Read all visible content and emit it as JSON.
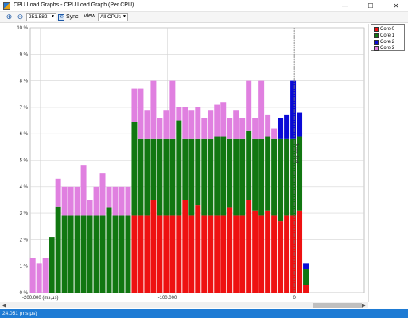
{
  "window": {
    "title": "CPU Load Graphs - CPU Load Graph (Per CPU)",
    "minimize_glyph": "—",
    "maximize_glyph": "☐",
    "close_glyph": "✕"
  },
  "toolbar": {
    "zoom_in_icon": "zoom-in-icon",
    "zoom_out_icon": "zoom-out-icon",
    "zoom_value": "251.582",
    "sync_label": "Sync",
    "view_label": "View",
    "cpu_select_value": "All CPUs"
  },
  "status_bar": {
    "text": "24.051 (ms,μs)"
  },
  "colors": {
    "core0": "#ee1111",
    "core1": "#117711",
    "core2": "#0a0ad6",
    "core3": "#e080e0",
    "status_bar": "#1e7bd4"
  },
  "chart_data": {
    "type": "bar",
    "stacked": true,
    "title": "",
    "xlabel": "",
    "ylabel": "",
    "ylim": [
      0,
      10
    ],
    "yticks": [
      "0 %",
      "1 %",
      "2 %",
      "3 %",
      "4 %",
      "5 %",
      "6 %",
      "7 %",
      "8 %",
      "9 %",
      "10 %"
    ],
    "xticks": [
      {
        "value": -200000,
        "label": "-200.000 (ms,μs)"
      },
      {
        "value": -100000,
        "label": "-100.000"
      },
      {
        "value": 0,
        "label": "0"
      }
    ],
    "xlim": [
      -208000,
      55000
    ],
    "grid": true,
    "legend_position": "right",
    "annotation": {
      "x": 0,
      "label": "Trace End"
    },
    "series_names": [
      "Core 0",
      "Core 1",
      "Core 2",
      "Core 3"
    ],
    "bins": [
      {
        "x": -206000,
        "core0": 0,
        "core1": 0,
        "core2": 0,
        "core3": 1.3
      },
      {
        "x": -201000,
        "core0": 0,
        "core1": 0,
        "core2": 0,
        "core3": 1.1
      },
      {
        "x": -196000,
        "core0": 0,
        "core1": 0,
        "core2": 0,
        "core3": 1.3
      },
      {
        "x": -191000,
        "core0": 0,
        "core1": 2.1,
        "core2": 0,
        "core3": 0
      },
      {
        "x": -186000,
        "core0": 0,
        "core1": 3.25,
        "core2": 0,
        "core3": 1.05
      },
      {
        "x": -181000,
        "core0": 0,
        "core1": 2.9,
        "core2": 0,
        "core3": 1.1
      },
      {
        "x": -176000,
        "core0": 0,
        "core1": 2.9,
        "core2": 0,
        "core3": 1.1
      },
      {
        "x": -171000,
        "core0": 0,
        "core1": 2.9,
        "core2": 0,
        "core3": 1.1
      },
      {
        "x": -166000,
        "core0": 0,
        "core1": 2.9,
        "core2": 0,
        "core3": 1.9
      },
      {
        "x": -161000,
        "core0": 0,
        "core1": 2.9,
        "core2": 0,
        "core3": 0.6
      },
      {
        "x": -156000,
        "core0": 0,
        "core1": 2.9,
        "core2": 0,
        "core3": 1.1
      },
      {
        "x": -151000,
        "core0": 0,
        "core1": 2.9,
        "core2": 0,
        "core3": 1.6
      },
      {
        "x": -146000,
        "core0": 0,
        "core1": 3.2,
        "core2": 0,
        "core3": 0.8
      },
      {
        "x": -141000,
        "core0": 0,
        "core1": 2.9,
        "core2": 0,
        "core3": 1.1
      },
      {
        "x": -136000,
        "core0": 0,
        "core1": 2.9,
        "core2": 0,
        "core3": 1.1
      },
      {
        "x": -131000,
        "core0": 0,
        "core1": 2.9,
        "core2": 0,
        "core3": 1.1
      },
      {
        "x": -126000,
        "core0": 2.9,
        "core1": 3.55,
        "core2": 0,
        "core3": 1.25
      },
      {
        "x": -121000,
        "core0": 2.9,
        "core1": 2.9,
        "core2": 0,
        "core3": 1.9
      },
      {
        "x": -116000,
        "core0": 2.9,
        "core1": 2.9,
        "core2": 0,
        "core3": 1.1
      },
      {
        "x": -111000,
        "core0": 3.5,
        "core1": 2.3,
        "core2": 0,
        "core3": 2.2
      },
      {
        "x": -106000,
        "core0": 2.9,
        "core1": 2.9,
        "core2": 0,
        "core3": 0.8
      },
      {
        "x": -101000,
        "core0": 2.9,
        "core1": 2.9,
        "core2": 0,
        "core3": 1.1
      },
      {
        "x": -96000,
        "core0": 2.9,
        "core1": 2.9,
        "core2": 0,
        "core3": 2.2
      },
      {
        "x": -91000,
        "core0": 2.9,
        "core1": 3.6,
        "core2": 0,
        "core3": 0.5
      },
      {
        "x": -86000,
        "core0": 3.5,
        "core1": 2.3,
        "core2": 0,
        "core3": 1.2
      },
      {
        "x": -81000,
        "core0": 2.9,
        "core1": 2.9,
        "core2": 0,
        "core3": 1.1
      },
      {
        "x": -76000,
        "core0": 3.3,
        "core1": 2.5,
        "core2": 0,
        "core3": 1.2
      },
      {
        "x": -71000,
        "core0": 2.9,
        "core1": 2.9,
        "core2": 0,
        "core3": 0.8
      },
      {
        "x": -66000,
        "core0": 2.9,
        "core1": 2.9,
        "core2": 0,
        "core3": 1.1
      },
      {
        "x": -61000,
        "core0": 2.9,
        "core1": 3.0,
        "core2": 0,
        "core3": 1.2
      },
      {
        "x": -56000,
        "core0": 2.9,
        "core1": 3.0,
        "core2": 0,
        "core3": 1.3
      },
      {
        "x": -51000,
        "core0": 3.2,
        "core1": 2.6,
        "core2": 0,
        "core3": 0.8
      },
      {
        "x": -46000,
        "core0": 2.9,
        "core1": 2.9,
        "core2": 0,
        "core3": 1.1
      },
      {
        "x": -41000,
        "core0": 2.9,
        "core1": 2.9,
        "core2": 0,
        "core3": 0.8
      },
      {
        "x": -36000,
        "core0": 3.5,
        "core1": 2.6,
        "core2": 0,
        "core3": 1.9
      },
      {
        "x": -31000,
        "core0": 3.1,
        "core1": 2.7,
        "core2": 0,
        "core3": 0.8
      },
      {
        "x": -26000,
        "core0": 2.9,
        "core1": 2.9,
        "core2": 0,
        "core3": 2.2
      },
      {
        "x": -21000,
        "core0": 3.1,
        "core1": 2.8,
        "core2": 0,
        "core3": 0.8
      },
      {
        "x": -16000,
        "core0": 2.9,
        "core1": 2.9,
        "core2": 0,
        "core3": 0.4
      },
      {
        "x": -11000,
        "core0": 2.7,
        "core1": 3.1,
        "core2": 0.8,
        "core3": 0
      },
      {
        "x": -6000,
        "core0": 2.9,
        "core1": 2.9,
        "core2": 0.9,
        "core3": 0
      },
      {
        "x": -1000,
        "core0": 2.9,
        "core1": 2.9,
        "core2": 2.2,
        "core3": 0
      },
      {
        "x": 4000,
        "core0": 3.1,
        "core1": 2.8,
        "core2": 0.9,
        "core3": 0
      },
      {
        "x": 9000,
        "core0": 0.3,
        "core1": 0.6,
        "core2": 0.2,
        "core3": 0
      }
    ]
  }
}
